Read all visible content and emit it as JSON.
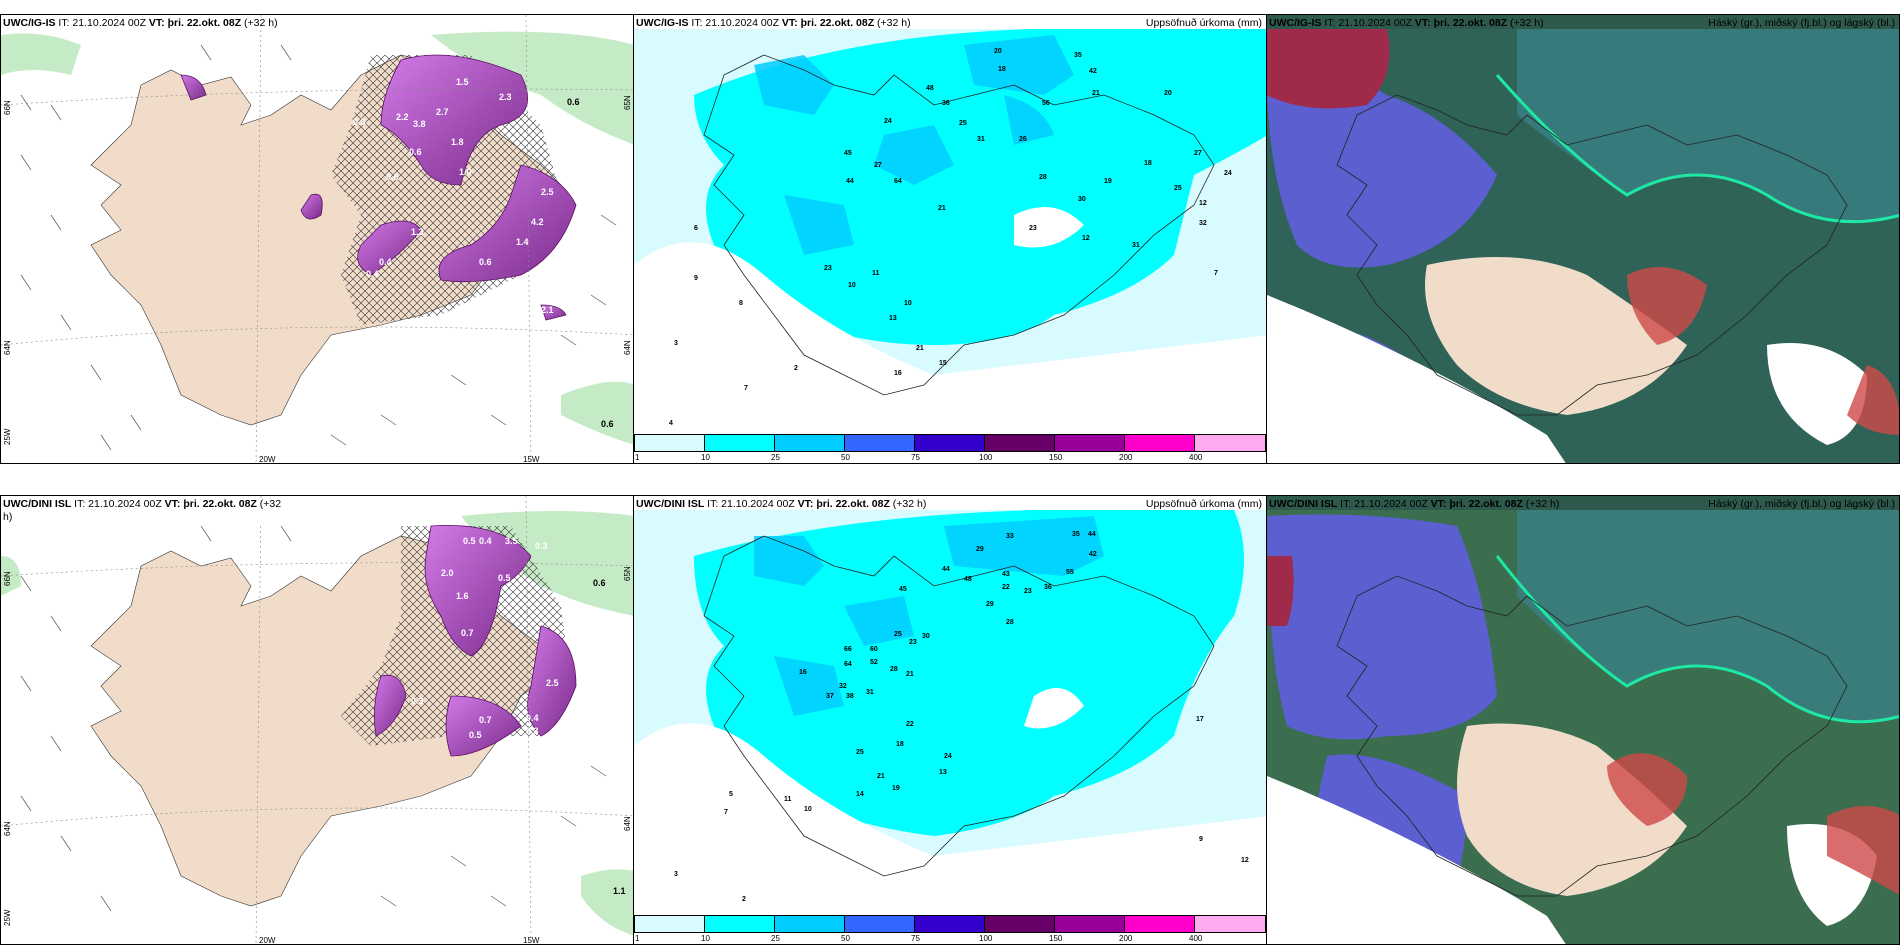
{
  "panels": {
    "p1": {
      "model": "UWC/IG-IS",
      "run": "IT: 21.10.2024 00Z",
      "vt_label": "VT:",
      "vt": "þri. 22.okt. 08Z",
      "lead": "(+32 h)",
      "right": ""
    },
    "p2": {
      "model": "UWC/IG-IS",
      "run": "IT: 21.10.2024 00Z",
      "vt_label": "VT:",
      "vt": "þri. 22.okt. 08Z",
      "lead": "(+32 h)",
      "right": "Uppsöfnuð úrkoma (mm)"
    },
    "p3": {
      "model": "UWC/IG-IS",
      "run": "IT: 21.10.2024 00Z",
      "vt_label": "VT:",
      "vt": "þri. 22.okt. 08Z",
      "lead": "(+32 h)",
      "right": "Háský (gr.), miðský (fj.bl.) og lágský (bl.)"
    },
    "p4": {
      "model": "UWC/DINI ISL",
      "run": "IT: 21.10.2024 00Z",
      "vt_label": "VT:",
      "vt": "þri. 22.okt. 08Z",
      "lead": "(+32",
      "lead2": "h)",
      "right": ""
    },
    "p5": {
      "model": "UWC/DINI ISL",
      "run": "IT: 21.10.2024 00Z",
      "vt_label": "VT:",
      "vt": "þri. 22.okt. 08Z",
      "lead": "(+32 h)",
      "right": "Uppsöfnuð úrkoma (mm)"
    },
    "p6": {
      "model": "UWC/DINI ISL",
      "run": "IT: 21.10.2024 00Z",
      "vt_label": "VT:",
      "vt": "þri. 22.okt. 08Z",
      "lead": "(+32 h)",
      "right": "Háský (gr.), miðský (fj.bl.) og lágský (bl.)"
    }
  },
  "axes": {
    "lon1": "20W",
    "lon2": "15W",
    "lat1": "66N",
    "lat2": "64N",
    "lon3": "25W",
    "lat1r": "65N",
    "lat2r": "64N"
  },
  "colorbar": {
    "ticks": [
      "1",
      "10",
      "25",
      "50",
      "75",
      "100",
      "150",
      "200",
      "400"
    ],
    "colors": [
      "#d8fbff",
      "#00ffff",
      "#00ccff",
      "#3366ff",
      "#3300cc",
      "#660066",
      "#990099",
      "#ff00cc",
      "#ffaaf0"
    ]
  },
  "labels_top_left": [
    "0.5",
    "3.8",
    "2.7",
    "2.2",
    "1.8",
    "1.5",
    "1.0",
    "0.6",
    "0.6",
    "2.5",
    "2.3",
    "4.2",
    "1.4",
    "1.3",
    "0.6",
    "0.4",
    "0.4",
    "0.6",
    "2.1",
    "0.6"
  ],
  "labels_bottom_left": [
    "0.5",
    "0.4",
    "3.5",
    "0.3",
    "2.0",
    "1.6",
    "0.7",
    "0.5",
    "0.6",
    "0.4",
    "0.3",
    "2.5",
    "0.7",
    "0.5",
    "0.3",
    "1.1"
  ],
  "precip_top": [
    "20",
    "18",
    "35",
    "42",
    "21",
    "48",
    "36",
    "25",
    "31",
    "24",
    "56",
    "26",
    "45",
    "27",
    "44",
    "64",
    "28",
    "30",
    "21",
    "12",
    "11",
    "10",
    "10",
    "13",
    "25",
    "23",
    "21",
    "16",
    "20",
    "31",
    "32",
    "24",
    "23",
    "19",
    "18",
    "15",
    "3",
    "8",
    "7",
    "4",
    "2",
    "6",
    "9",
    "7",
    "12",
    "27"
  ],
  "precip_bottom": [
    "33",
    "35",
    "44",
    "42",
    "29",
    "44",
    "43",
    "48",
    "22",
    "23",
    "36",
    "55",
    "45",
    "29",
    "28",
    "66",
    "60",
    "52",
    "64",
    "30",
    "25",
    "28",
    "23",
    "21",
    "16",
    "32",
    "37",
    "38",
    "31",
    "22",
    "18",
    "25",
    "24",
    "21",
    "19",
    "14",
    "13",
    "10",
    "11",
    "7",
    "5",
    "3",
    "2",
    "9",
    "12",
    "17"
  ]
}
